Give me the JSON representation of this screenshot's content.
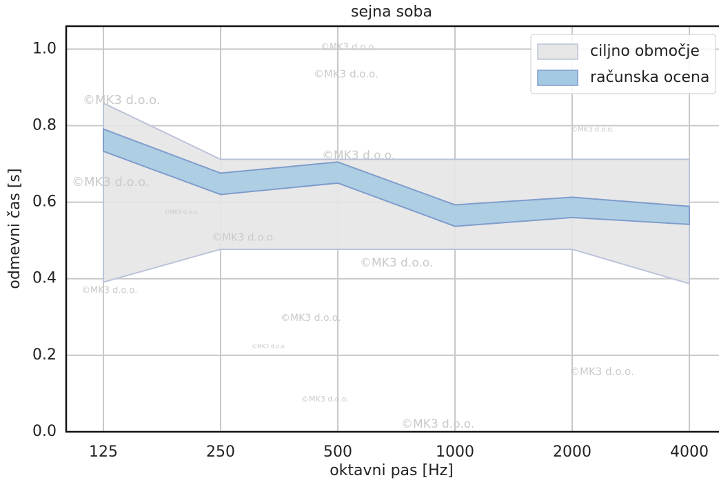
{
  "chart_data": {
    "type": "band",
    "title": "sejna soba",
    "x_label": "oktavni pas [Hz]",
    "y_label": "odmevni čas [s]",
    "categories": [
      "125",
      "250",
      "500",
      "1000",
      "2000",
      "4000"
    ],
    "series": [
      {
        "name": "ciljno območje",
        "color": "#e6e6e6",
        "edge_color": "#bcc3d9",
        "lower": [
          0.391,
          0.477,
          0.477,
          0.477,
          0.477,
          0.387
        ],
        "upper": [
          0.859,
          0.712,
          0.712,
          0.712,
          0.712,
          0.712
        ]
      },
      {
        "name": "računska ocena",
        "color": "#a3c9e3",
        "edge_color": "#7f9ccc",
        "lower": [
          0.733,
          0.62,
          0.65,
          0.537,
          0.56,
          0.542
        ],
        "upper": [
          0.791,
          0.676,
          0.705,
          0.593,
          0.613,
          0.589
        ]
      }
    ],
    "ylim": [
      0,
      1.06
    ],
    "yticks": [
      {
        "value": 0,
        "label": "0.0"
      },
      0.2,
      0.4,
      0.6,
      0.8,
      {
        "value": 1,
        "label": "1.0"
      }
    ],
    "grid": true,
    "legend": "upper right",
    "watermark": "©MK3 d.o.o."
  }
}
